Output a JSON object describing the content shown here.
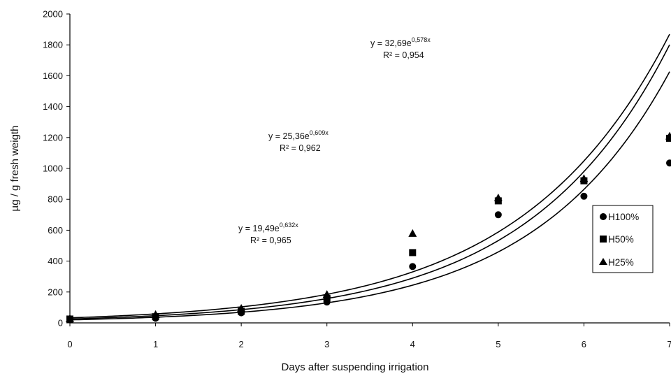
{
  "chart_data": {
    "type": "scatter",
    "xlabel": "Days after suspending irrigation",
    "ylabel": "µg / g fresh weigth",
    "xlim": [
      0,
      7
    ],
    "ylim": [
      0,
      2000
    ],
    "x_ticks": [
      "0",
      "1",
      "2",
      "3",
      "4",
      "5",
      "6",
      "7"
    ],
    "y_ticks": [
      "0",
      "200",
      "400",
      "600",
      "800",
      "1000",
      "1200",
      "1400",
      "1600",
      "1800",
      "2000"
    ],
    "grid": false,
    "legend_position": "right",
    "series": [
      {
        "name": "H100%",
        "marker": "circle",
        "x": [
          0,
          1,
          2,
          3,
          4,
          5,
          6,
          7
        ],
        "y": [
          20,
          30,
          65,
          135,
          365,
          700,
          820,
          1035
        ],
        "fit": {
          "a": 19.49,
          "b": 0.632,
          "equation_base": "y = 19,49e",
          "equation_exp": "0,632x",
          "r2": "R² = 0,965"
        }
      },
      {
        "name": "H50%",
        "marker": "square",
        "x": [
          0,
          1,
          2,
          3,
          4,
          5,
          6,
          7
        ],
        "y": [
          25,
          40,
          75,
          160,
          455,
          790,
          920,
          1195
        ],
        "fit": {
          "a": 25.36,
          "b": 0.609,
          "equation_base": "y = 25,36e",
          "equation_exp": "0,609x",
          "r2": "R² = 0,962"
        }
      },
      {
        "name": "H25%",
        "marker": "triangle",
        "x": [
          0,
          1,
          2,
          3,
          4,
          5,
          6,
          7
        ],
        "y": [
          28,
          55,
          95,
          185,
          580,
          810,
          935,
          1210
        ],
        "fit": {
          "a": 32.69,
          "b": 0.578,
          "equation_base": "y = 32,69e",
          "equation_exp": "0,578x",
          "r2": "R² = 0,954"
        }
      }
    ]
  }
}
